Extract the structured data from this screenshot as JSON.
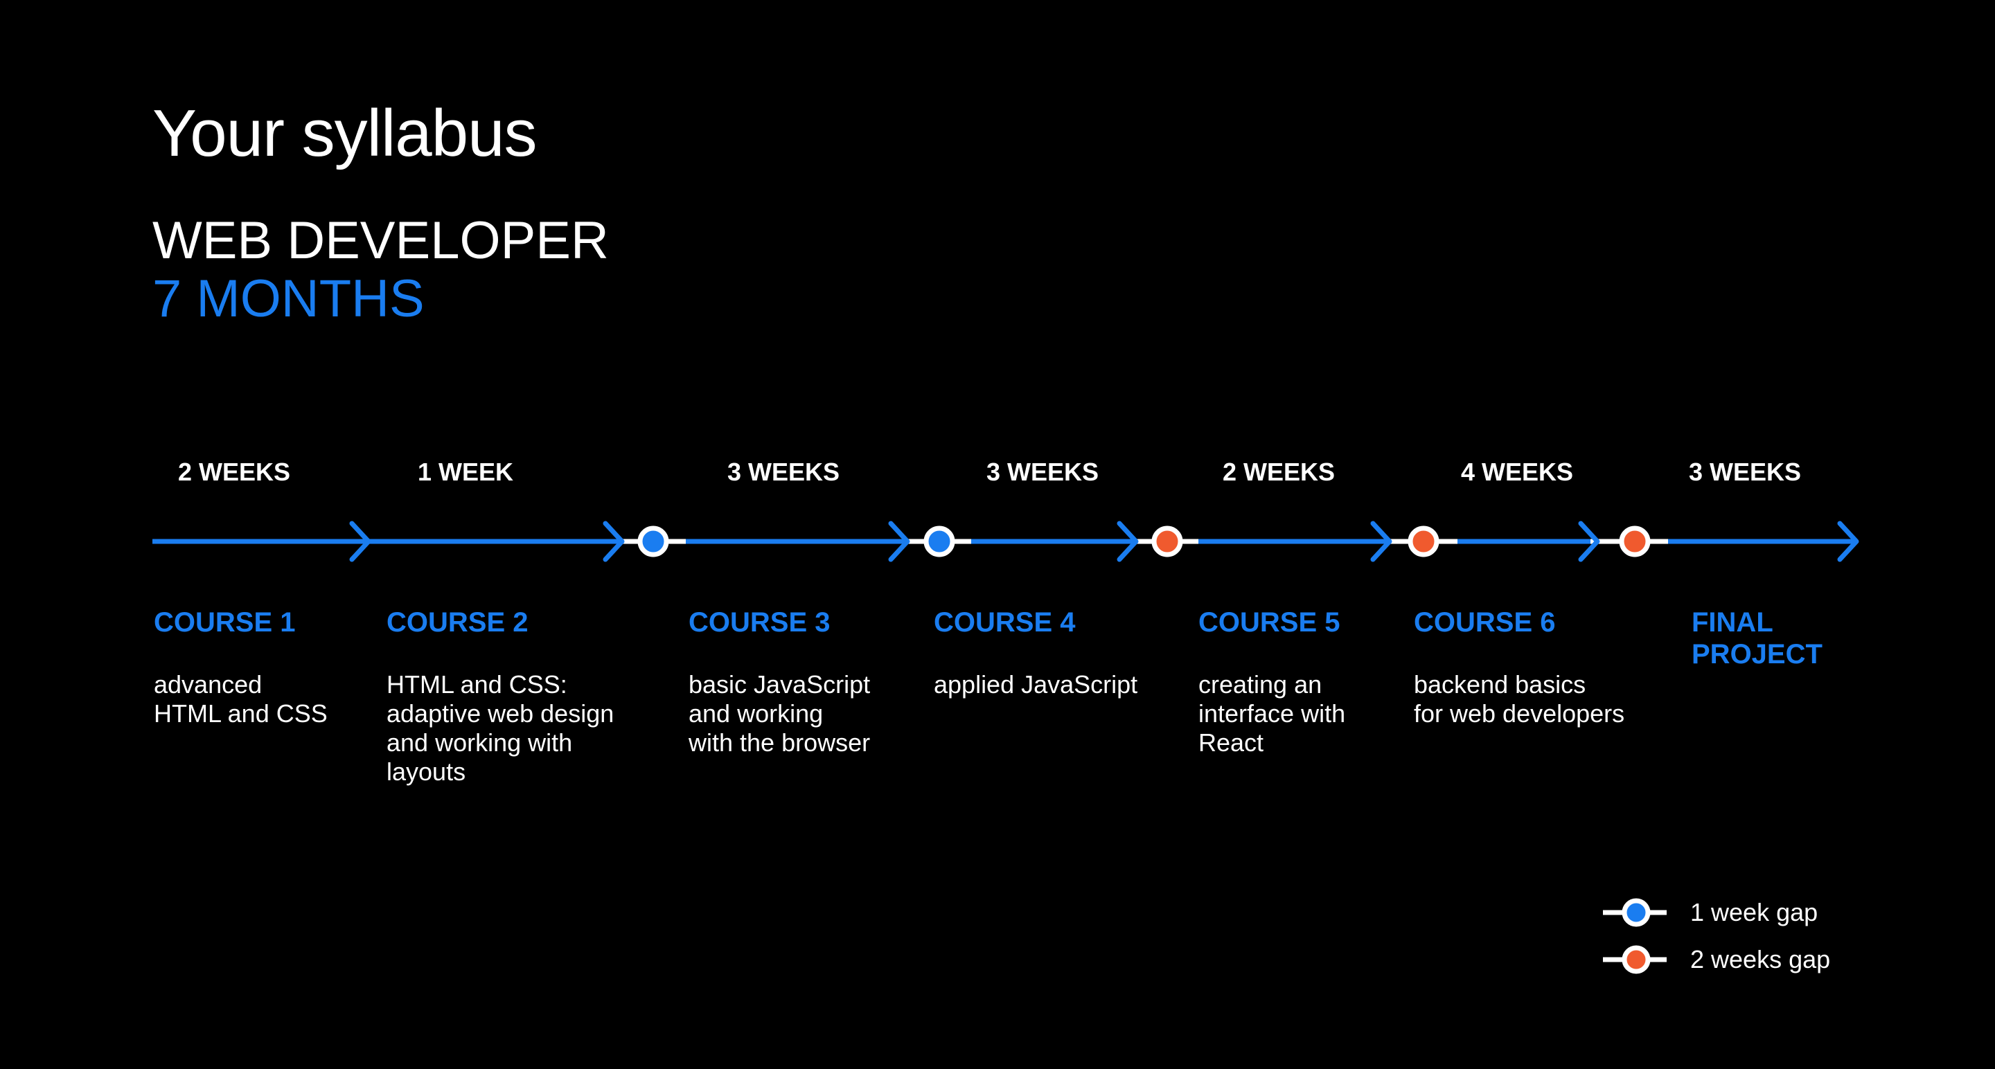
{
  "title": "Your syllabus",
  "program": "WEB DEVELOPER",
  "duration": "7 MONTHS",
  "colors": {
    "background": "#000000",
    "text": "#ffffff",
    "accent_blue": "#1a7df0",
    "accent_orange": "#f05a2e"
  },
  "durations": [
    "2 WEEKS",
    "1 WEEK",
    "3 WEEKS",
    "3 WEEKS",
    "2 WEEKS",
    "4 WEEKS",
    "3 WEEKS"
  ],
  "gaps": [
    "1 week gap",
    "1 week gap",
    "2 weeks gap",
    "2 weeks gap",
    "2 weeks gap"
  ],
  "courses": [
    {
      "name": "COURSE 1",
      "description": "advanced\nHTML and CSS"
    },
    {
      "name": "COURSE 2",
      "description": "HTML and CSS:\nadaptive web design\nand working with\nlayouts"
    },
    {
      "name": "COURSE 3",
      "description": "basic JavaScript\nand working\nwith the browser"
    },
    {
      "name": "COURSE 4",
      "description": "applied JavaScript"
    },
    {
      "name": "COURSE 5",
      "description": "creating an\ninterface with\nReact"
    },
    {
      "name": "COURSE 6",
      "description": "backend basics\nfor web developers"
    },
    {
      "name": "FINAL\nPROJECT",
      "description": ""
    }
  ],
  "legend": [
    {
      "label": "1 week gap",
      "color_key": "accent_blue"
    },
    {
      "label": "2 weeks gap",
      "color_key": "accent_orange"
    }
  ]
}
